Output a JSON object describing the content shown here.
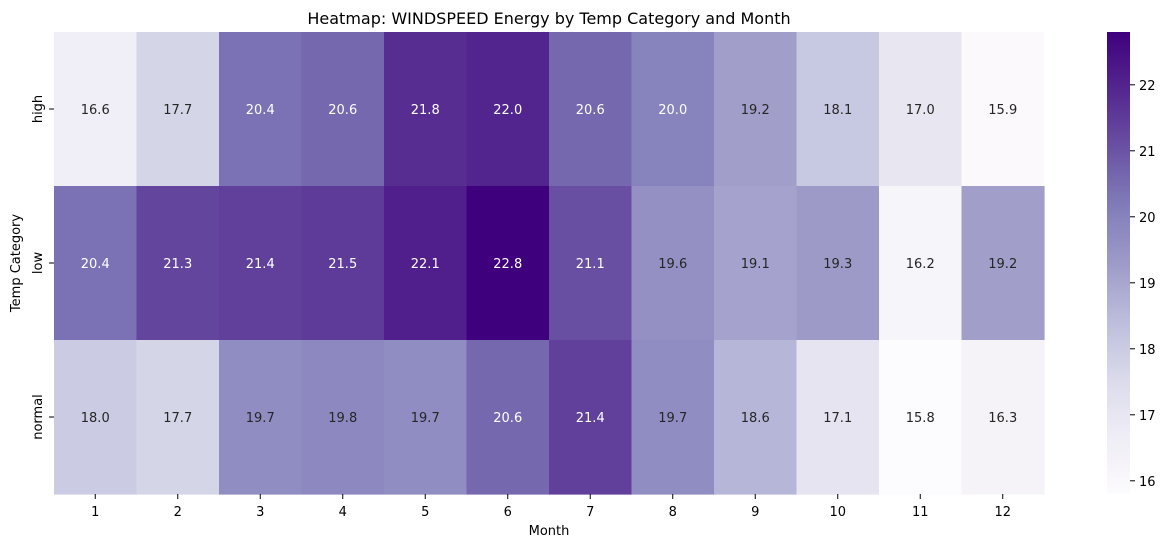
{
  "chart_data": {
    "type": "heatmap",
    "title": "Heatmap: WINDSPEED Energy by Temp Category and Month",
    "xlabel": "Month",
    "ylabel": "Temp Category",
    "x_categories": [
      "1",
      "2",
      "3",
      "4",
      "5",
      "6",
      "7",
      "8",
      "9",
      "10",
      "11",
      "12"
    ],
    "y_categories": [
      "high",
      "low",
      "normal"
    ],
    "values": [
      [
        16.6,
        17.7,
        20.4,
        20.6,
        21.8,
        22.0,
        20.6,
        20.0,
        19.2,
        18.1,
        17.0,
        15.9
      ],
      [
        20.4,
        21.3,
        21.4,
        21.5,
        22.1,
        22.8,
        21.1,
        19.6,
        19.1,
        19.3,
        16.2,
        19.2
      ],
      [
        18.0,
        17.7,
        19.7,
        19.8,
        19.7,
        20.6,
        21.4,
        19.7,
        18.6,
        17.1,
        15.8,
        16.3
      ]
    ],
    "colorbar": {
      "range": [
        15.8,
        22.8
      ],
      "ticks": [
        "16",
        "17",
        "18",
        "19",
        "20",
        "21",
        "22"
      ],
      "colormap": "Purples",
      "color_low": "#fcfbfd",
      "color_high": "#3f007d"
    },
    "annotations": true,
    "grid": false,
    "legend": "colorbar-right"
  }
}
